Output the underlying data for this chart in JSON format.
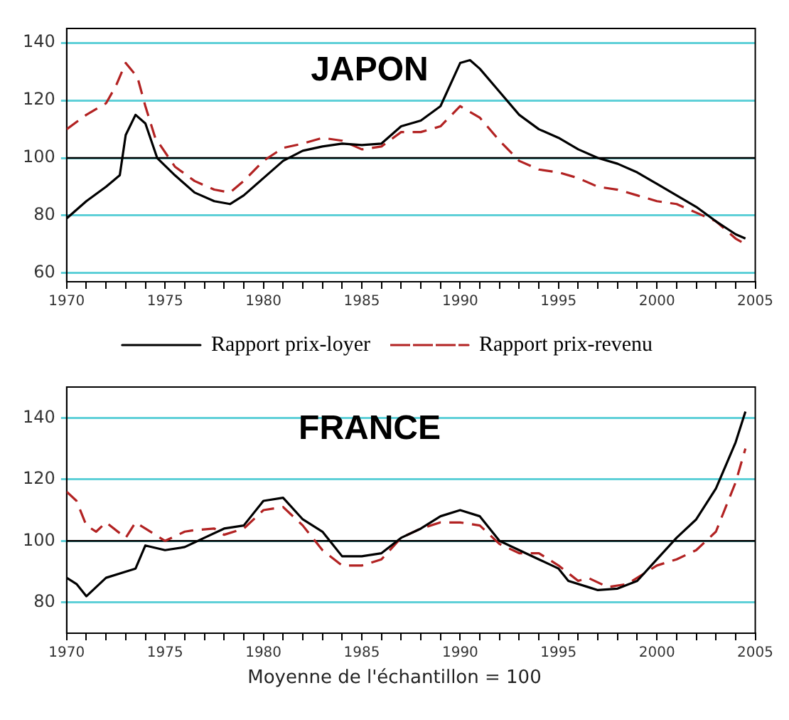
{
  "chart_data": [
    {
      "type": "line",
      "title": "JAPON",
      "legend": "bottom",
      "grid": "y",
      "marker": "none",
      "xlim": [
        1970,
        2005
      ],
      "ylim": [
        57,
        145
      ],
      "xticks": [
        1970,
        {
          "value": 1971,
          "label": null
        },
        {
          "value": 1972,
          "label": null
        },
        {
          "value": 1973,
          "label": null
        },
        {
          "value": 1974,
          "label": null
        },
        1975,
        {
          "value": 1976,
          "label": null
        },
        {
          "value": 1977,
          "label": null
        },
        {
          "value": 1978,
          "label": null
        },
        {
          "value": 1979,
          "label": null
        },
        1980,
        {
          "value": 1981,
          "label": null
        },
        {
          "value": 1982,
          "label": null
        },
        {
          "value": 1983,
          "label": null
        },
        {
          "value": 1984,
          "label": null
        },
        1985,
        {
          "value": 1986,
          "label": null
        },
        {
          "value": 1987,
          "label": null
        },
        {
          "value": 1988,
          "label": null
        },
        {
          "value": 1989,
          "label": null
        },
        1990,
        {
          "value": 1991,
          "label": null
        },
        {
          "value": 1992,
          "label": null
        },
        {
          "value": 1993,
          "label": null
        },
        {
          "value": 1994,
          "label": null
        },
        1995,
        {
          "value": 1996,
          "label": null
        },
        {
          "value": 1997,
          "label": null
        },
        {
          "value": 1998,
          "label": null
        },
        {
          "value": 1999,
          "label": null
        },
        2000,
        {
          "value": 2001,
          "label": null
        },
        {
          "value": 2002,
          "label": null
        },
        {
          "value": 2003,
          "label": null
        },
        {
          "value": 2004,
          "label": null
        },
        2005
      ],
      "yticks": [
        60,
        80,
        100,
        120,
        140
      ],
      "ref_lines": [
        {
          "axis": "y",
          "value": 100,
          "color": "#000000"
        }
      ],
      "series": [
        {
          "name": "Rapport prix-loyer",
          "color": "#000000",
          "line_style": "solid",
          "x": [
            1970,
            1971,
            1972,
            1972.7,
            1973,
            1973.5,
            1974,
            1974.6,
            1975.5,
            1976.5,
            1977.5,
            1978.3,
            1979,
            1980,
            1981,
            1982,
            1983,
            1984,
            1985,
            1986,
            1987,
            1988,
            1989,
            1990,
            1990.5,
            1991,
            1992,
            1993,
            1994,
            1995,
            1996,
            1997,
            1998,
            1999,
            2000,
            2001,
            2002,
            2003,
            2004,
            2004.5
          ],
          "values": [
            79,
            85,
            90,
            94,
            108,
            115,
            112,
            100,
            94,
            88,
            85,
            84,
            87,
            93,
            99,
            102.5,
            104,
            105,
            104.5,
            105,
            111,
            113,
            118,
            133,
            134,
            131,
            123,
            115,
            110,
            107,
            103,
            100,
            98,
            95,
            91,
            87,
            83,
            78,
            73.5,
            72
          ]
        },
        {
          "name": "Rapport prix-revenu",
          "color": "#b22222",
          "line_style": "dashed",
          "x": [
            1970,
            1971,
            1972,
            1972.5,
            1973,
            1973.6,
            1974,
            1974.5,
            1975.5,
            1976.5,
            1977.5,
            1978.3,
            1979,
            1980,
            1981,
            1982,
            1983,
            1984,
            1985,
            1986,
            1987,
            1988,
            1989,
            1990,
            1991,
            1992,
            1993,
            1994,
            1995,
            1996,
            1997,
            1998,
            1999,
            2000,
            2001,
            2002,
            2003,
            2004,
            2004.5
          ],
          "values": [
            110,
            115,
            119,
            125,
            133,
            128,
            118,
            107,
            97,
            92,
            89,
            88,
            92,
            99,
            103.5,
            105,
            107,
            106,
            103,
            104,
            109,
            109,
            111,
            118,
            114,
            106,
            99,
            96,
            95,
            93,
            90,
            89,
            87,
            85,
            84,
            81,
            78,
            72,
            70
          ]
        }
      ]
    },
    {
      "type": "line",
      "title": "FRANCE",
      "grid": "y",
      "marker": "none",
      "xlim": [
        1970,
        2005
      ],
      "ylim": [
        70,
        150
      ],
      "xticks": [
        1970,
        {
          "value": 1971,
          "label": null
        },
        {
          "value": 1972,
          "label": null
        },
        {
          "value": 1973,
          "label": null
        },
        {
          "value": 1974,
          "label": null
        },
        1975,
        {
          "value": 1976,
          "label": null
        },
        {
          "value": 1977,
          "label": null
        },
        {
          "value": 1978,
          "label": null
        },
        {
          "value": 1979,
          "label": null
        },
        1980,
        {
          "value": 1981,
          "label": null
        },
        {
          "value": 1982,
          "label": null
        },
        {
          "value": 1983,
          "label": null
        },
        {
          "value": 1984,
          "label": null
        },
        1985,
        {
          "value": 1986,
          "label": null
        },
        {
          "value": 1987,
          "label": null
        },
        {
          "value": 1988,
          "label": null
        },
        {
          "value": 1989,
          "label": null
        },
        1990,
        {
          "value": 1991,
          "label": null
        },
        {
          "value": 1992,
          "label": null
        },
        {
          "value": 1993,
          "label": null
        },
        {
          "value": 1994,
          "label": null
        },
        1995,
        {
          "value": 1996,
          "label": null
        },
        {
          "value": 1997,
          "label": null
        },
        {
          "value": 1998,
          "label": null
        },
        {
          "value": 1999,
          "label": null
        },
        2000,
        {
          "value": 2001,
          "label": null
        },
        {
          "value": 2002,
          "label": null
        },
        {
          "value": 2003,
          "label": null
        },
        {
          "value": 2004,
          "label": null
        },
        2005
      ],
      "yticks": [
        80,
        100,
        120,
        140
      ],
      "ref_lines": [
        {
          "axis": "y",
          "value": 100,
          "color": "#000000"
        }
      ],
      "annotations": [
        "Moyenne de l'échantillon = 100"
      ],
      "series": [
        {
          "color": "#000000",
          "line_style": "solid",
          "x": [
            1970,
            1970.5,
            1971,
            1972,
            1973,
            1973.5,
            1974,
            1975,
            1976,
            1977,
            1978,
            1979,
            1980,
            1981,
            1982,
            1983,
            1984,
            1985,
            1986,
            1987,
            1988,
            1989,
            1990,
            1991,
            1992,
            1993,
            1994,
            1995,
            1995.5,
            1996.5,
            1997,
            1998,
            1999,
            2000,
            2001,
            2002,
            2003,
            2004,
            2004.5
          ],
          "values": [
            88,
            86,
            82,
            88,
            90,
            91,
            98.5,
            97,
            98,
            101,
            104,
            105,
            113,
            114,
            107,
            103,
            95,
            95,
            96,
            101,
            104,
            108,
            110,
            108,
            100,
            97,
            94,
            91,
            87,
            85,
            84,
            84.5,
            87,
            94,
            101,
            107,
            117,
            132,
            142
          ]
        },
        {
          "color": "#b22222",
          "line_style": "dashed",
          "x": [
            1970,
            1970.5,
            1971,
            1971.5,
            1972,
            1973,
            1973.5,
            1974,
            1975,
            1976,
            1976.5,
            1977.5,
            1978,
            1979,
            1980,
            1981,
            1982,
            1983,
            1984,
            1985,
            1986,
            1987,
            1988,
            1989,
            1990,
            1991,
            1992,
            1993,
            1994,
            1995,
            1996,
            1996.5,
            1997.5,
            1998.5,
            1999,
            2000,
            2001,
            2002,
            2003,
            2004,
            2004.5
          ],
          "values": [
            116,
            113,
            105,
            103,
            106,
            101,
            106,
            104,
            100,
            103,
            103.5,
            104,
            102,
            104,
            110,
            111,
            105,
            97,
            92,
            92,
            94,
            101,
            104,
            106,
            106,
            105,
            99,
            96,
            96,
            92,
            87,
            88,
            85,
            86,
            88,
            92,
            94,
            97,
            103,
            119,
            130
          ]
        }
      ]
    }
  ]
}
